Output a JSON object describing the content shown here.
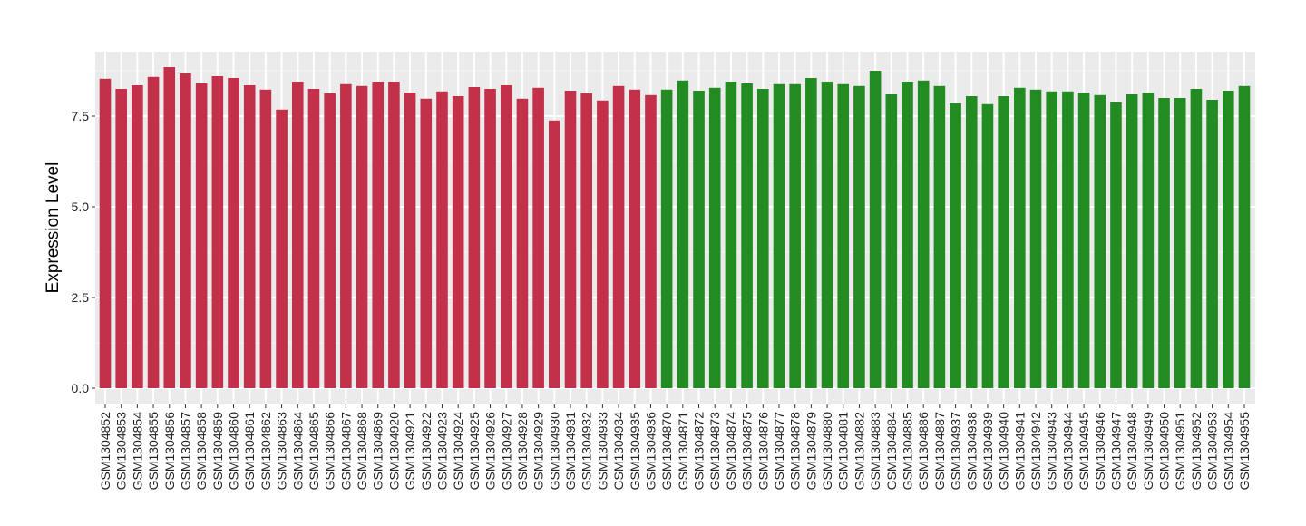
{
  "chart_data": {
    "type": "bar",
    "title": "",
    "xlabel": "",
    "ylabel": "Expression Level",
    "ylim": [
      0,
      9.275
    ],
    "yticks": [
      "0.0",
      "2.5",
      "5.0",
      "7.5"
    ],
    "grid": true,
    "legend": "none",
    "colors": {
      "group1": "#C33049",
      "group2": "#228B22",
      "panel": "#EBEBEB"
    },
    "categories": [
      "GSM1304852",
      "GSM1304853",
      "GSM1304854",
      "GSM1304855",
      "GSM1304856",
      "GSM1304857",
      "GSM1304858",
      "GSM1304859",
      "GSM1304860",
      "GSM1304861",
      "GSM1304862",
      "GSM1304863",
      "GSM1304864",
      "GSM1304865",
      "GSM1304866",
      "GSM1304867",
      "GSM1304868",
      "GSM1304869",
      "GSM1304920",
      "GSM1304921",
      "GSM1304922",
      "GSM1304923",
      "GSM1304924",
      "GSM1304925",
      "GSM1304926",
      "GSM1304927",
      "GSM1304928",
      "GSM1304929",
      "GSM1304930",
      "GSM1304931",
      "GSM1304932",
      "GSM1304933",
      "GSM1304934",
      "GSM1304935",
      "GSM1304936",
      "GSM1304870",
      "GSM1304871",
      "GSM1304872",
      "GSM1304873",
      "GSM1304874",
      "GSM1304875",
      "GSM1304876",
      "GSM1304877",
      "GSM1304878",
      "GSM1304879",
      "GSM1304880",
      "GSM1304881",
      "GSM1304882",
      "GSM1304883",
      "GSM1304884",
      "GSM1304885",
      "GSM1304886",
      "GSM1304887",
      "GSM1304937",
      "GSM1304938",
      "GSM1304939",
      "GSM1304940",
      "GSM1304941",
      "GSM1304942",
      "GSM1304943",
      "GSM1304944",
      "GSM1304945",
      "GSM1304946",
      "GSM1304947",
      "GSM1304948",
      "GSM1304949",
      "GSM1304950",
      "GSM1304951",
      "GSM1304952",
      "GSM1304953",
      "GSM1304954",
      "GSM1304955"
    ],
    "values": [
      8.53,
      8.25,
      8.35,
      8.58,
      8.85,
      8.68,
      8.4,
      8.6,
      8.55,
      8.35,
      8.23,
      7.68,
      8.45,
      8.25,
      8.13,
      8.38,
      8.33,
      8.45,
      8.45,
      8.15,
      7.98,
      8.18,
      8.05,
      8.3,
      8.25,
      8.35,
      7.98,
      8.28,
      7.38,
      8.2,
      8.13,
      7.93,
      8.33,
      8.23,
      8.08,
      8.23,
      8.48,
      8.2,
      8.28,
      8.45,
      8.4,
      8.25,
      8.38,
      8.38,
      8.55,
      8.45,
      8.38,
      8.33,
      8.75,
      8.1,
      8.45,
      8.48,
      8.33,
      7.85,
      8.05,
      7.83,
      8.05,
      8.28,
      8.23,
      8.18,
      8.18,
      8.15,
      8.08,
      7.88,
      8.1,
      8.15,
      8.0,
      8.0,
      8.25,
      7.95,
      8.2,
      8.33
    ],
    "groups": [
      "group1",
      "group1",
      "group1",
      "group1",
      "group1",
      "group1",
      "group1",
      "group1",
      "group1",
      "group1",
      "group1",
      "group1",
      "group1",
      "group1",
      "group1",
      "group1",
      "group1",
      "group1",
      "group1",
      "group1",
      "group1",
      "group1",
      "group1",
      "group1",
      "group1",
      "group1",
      "group1",
      "group1",
      "group1",
      "group1",
      "group1",
      "group1",
      "group1",
      "group1",
      "group1",
      "group2",
      "group2",
      "group2",
      "group2",
      "group2",
      "group2",
      "group2",
      "group2",
      "group2",
      "group2",
      "group2",
      "group2",
      "group2",
      "group2",
      "group2",
      "group2",
      "group2",
      "group2",
      "group2",
      "group2",
      "group2",
      "group2",
      "group2",
      "group2",
      "group2",
      "group2",
      "group2",
      "group2",
      "group2",
      "group2",
      "group2",
      "group2",
      "group2",
      "group2",
      "group2",
      "group2",
      "group2"
    ]
  }
}
